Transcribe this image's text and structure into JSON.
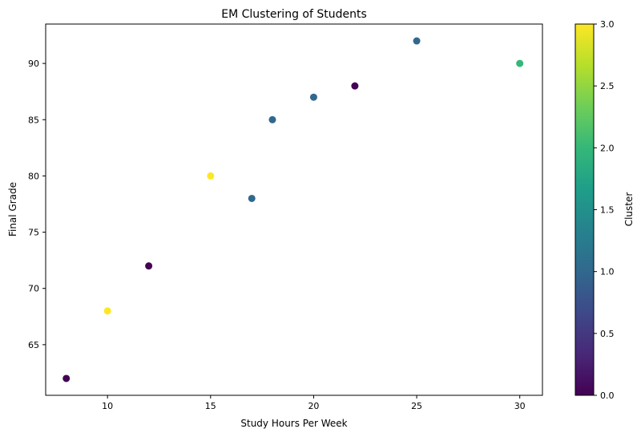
{
  "chart_data": {
    "type": "scatter",
    "title": "EM Clustering of Students",
    "xlabel": "Study Hours Per Week",
    "ylabel": "Final Grade",
    "xlim": [
      7.0,
      31.1
    ],
    "ylim": [
      60.5,
      93.5
    ],
    "xticks": [
      10,
      15,
      20,
      25,
      30
    ],
    "yticks": [
      65,
      70,
      75,
      80,
      85,
      90
    ],
    "grid": false,
    "colormap": "viridis",
    "colorbar": {
      "label": "Cluster",
      "range": [
        0.0,
        3.0
      ],
      "ticks": [
        "0.0",
        "0.5",
        "1.0",
        "1.5",
        "2.0",
        "2.5",
        "3.0"
      ]
    },
    "points": [
      {
        "x": 8,
        "y": 62,
        "cluster": 0
      },
      {
        "x": 10,
        "y": 68,
        "cluster": 3
      },
      {
        "x": 12,
        "y": 72,
        "cluster": 0
      },
      {
        "x": 15,
        "y": 80,
        "cluster": 3
      },
      {
        "x": 17,
        "y": 78,
        "cluster": 1
      },
      {
        "x": 18,
        "y": 85,
        "cluster": 1
      },
      {
        "x": 20,
        "y": 87,
        "cluster": 1
      },
      {
        "x": 22,
        "y": 88,
        "cluster": 0
      },
      {
        "x": 25,
        "y": 92,
        "cluster": 1
      },
      {
        "x": 30,
        "y": 90,
        "cluster": 2
      }
    ]
  }
}
